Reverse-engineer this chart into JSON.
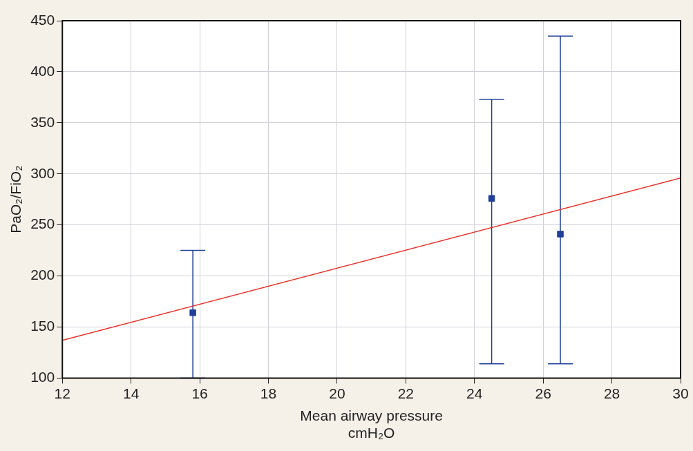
{
  "chart_data": {
    "type": "scatter",
    "xlabel": "Mean airway pressure\ncmH₂O",
    "ylabel": "PaO₂/FiO₂",
    "xlim": [
      12,
      30
    ],
    "xticks": [
      12,
      14,
      16,
      18,
      20,
      22,
      24,
      26,
      28,
      30
    ],
    "ylim": [
      100,
      450
    ],
    "yticks": [
      100,
      150,
      200,
      250,
      300,
      350,
      400,
      450
    ],
    "grid": true,
    "legend": false,
    "marker": "square",
    "series": [
      {
        "type": "scatter",
        "color": "#1f3f99",
        "x": [
          15.8,
          24.5,
          26.5
        ],
        "values": [
          164,
          276,
          241
        ],
        "errors": [
          [
            100,
            225
          ],
          [
            114,
            373
          ],
          [
            114,
            435
          ]
        ]
      },
      {
        "type": "line",
        "color": "#e8322a",
        "x": [
          12,
          30
        ],
        "values": [
          137,
          296
        ],
        "marker": "none",
        "line_style": "solid"
      }
    ]
  }
}
